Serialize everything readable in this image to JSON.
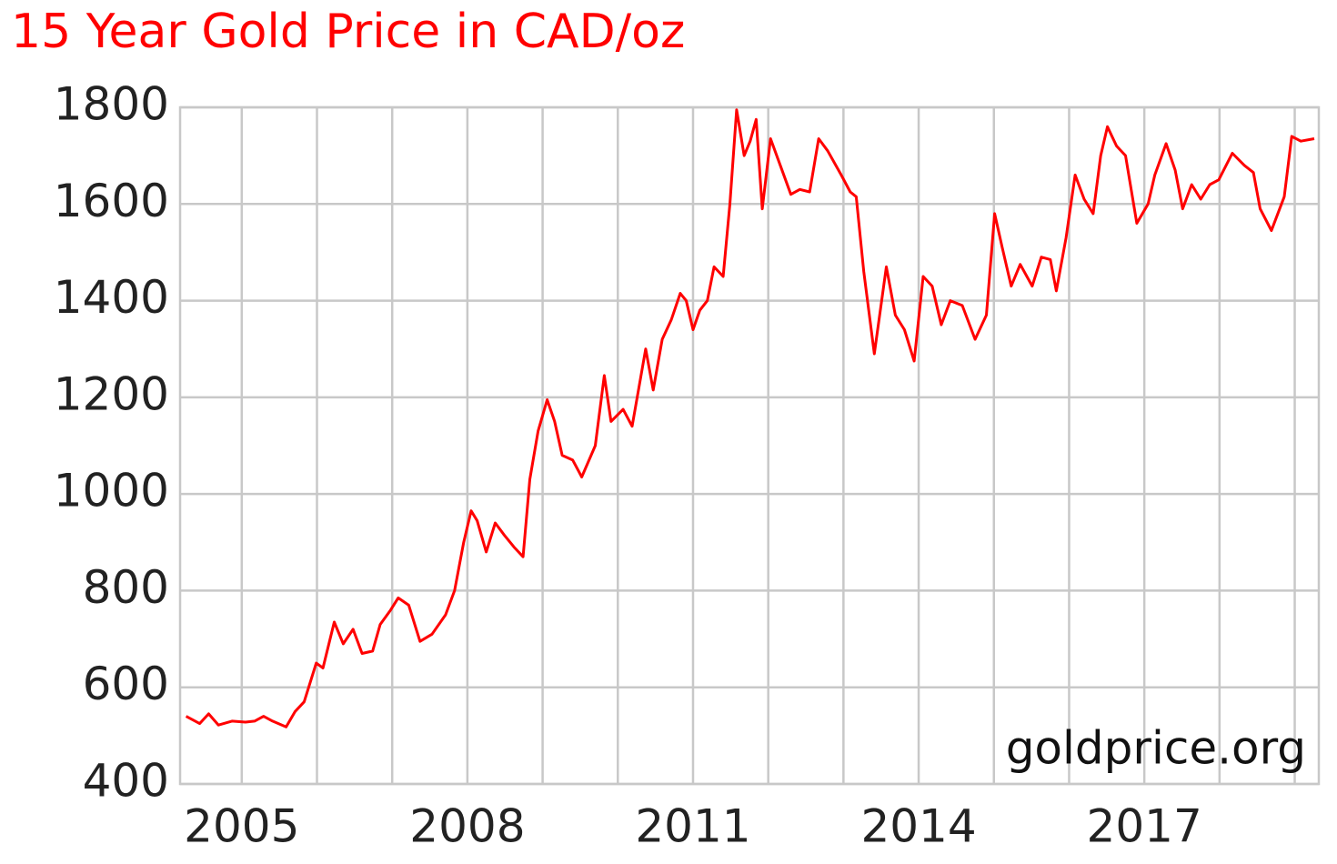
{
  "chart_data": {
    "type": "line",
    "title": "15 Year Gold Price in CAD/oz",
    "annotation": "goldprice.org",
    "x": [
      2004.26,
      2004.44,
      2004.56,
      2004.69,
      2004.87,
      2005.05,
      2005.17,
      2005.29,
      2005.41,
      2005.59,
      2005.71,
      2005.83,
      2005.99,
      2006.08,
      2006.23,
      2006.35,
      2006.48,
      2006.6,
      2006.74,
      2006.84,
      2006.98,
      2007.08,
      2007.22,
      2007.37,
      2007.53,
      2007.71,
      2007.83,
      2007.95,
      2008.05,
      2008.13,
      2008.25,
      2008.37,
      2008.49,
      2008.62,
      2008.74,
      2008.83,
      2008.94,
      2009.06,
      2009.16,
      2009.26,
      2009.4,
      2009.52,
      2009.7,
      2009.82,
      2009.91,
      2010.07,
      2010.19,
      2010.37,
      2010.47,
      2010.59,
      2010.71,
      2010.83,
      2010.91,
      2011.0,
      2011.09,
      2011.19,
      2011.28,
      2011.4,
      2011.49,
      2011.58,
      2011.68,
      2011.76,
      2011.84,
      2011.92,
      2012.03,
      2012.16,
      2012.3,
      2012.42,
      2012.55,
      2012.67,
      2012.79,
      2012.97,
      2013.09,
      2013.17,
      2013.27,
      2013.41,
      2013.57,
      2013.69,
      2013.81,
      2013.94,
      2014.06,
      2014.18,
      2014.3,
      2014.42,
      2014.58,
      2014.75,
      2014.9,
      2015.01,
      2015.11,
      2015.23,
      2015.35,
      2015.51,
      2015.63,
      2015.75,
      2015.83,
      2015.96,
      2016.08,
      2016.2,
      2016.32,
      2016.42,
      2016.51,
      2016.63,
      2016.75,
      2016.9,
      2017.05,
      2017.14,
      2017.29,
      2017.41,
      2017.51,
      2017.63,
      2017.75,
      2017.87,
      2017.99,
      2018.17,
      2018.33,
      2018.45,
      2018.54,
      2018.69,
      2018.86,
      2018.96,
      2019.08,
      2019.26
    ],
    "series": [
      {
        "name": "Gold Price",
        "color": "#ff0000",
        "values": [
          540,
          525,
          545,
          522,
          530,
          528,
          530,
          540,
          530,
          518,
          550,
          570,
          650,
          640,
          735,
          690,
          720,
          670,
          675,
          730,
          760,
          785,
          770,
          695,
          710,
          750,
          800,
          900,
          965,
          945,
          880,
          940,
          915,
          890,
          870,
          1030,
          1130,
          1195,
          1150,
          1080,
          1070,
          1035,
          1100,
          1245,
          1150,
          1175,
          1140,
          1300,
          1215,
          1320,
          1360,
          1415,
          1400,
          1340,
          1380,
          1400,
          1470,
          1450,
          1600,
          1795,
          1700,
          1730,
          1775,
          1590,
          1735,
          1680,
          1620,
          1630,
          1625,
          1735,
          1710,
          1660,
          1625,
          1615,
          1460,
          1290,
          1470,
          1370,
          1340,
          1275,
          1450,
          1430,
          1350,
          1400,
          1390,
          1320,
          1370,
          1580,
          1510,
          1430,
          1475,
          1430,
          1490,
          1485,
          1420,
          1530,
          1660,
          1610,
          1580,
          1700,
          1760,
          1720,
          1700,
          1560,
          1600,
          1660,
          1725,
          1670,
          1590,
          1640,
          1610,
          1640,
          1650,
          1705,
          1680,
          1665,
          1590,
          1545,
          1615,
          1740,
          1730,
          1735
        ]
      }
    ],
    "xlim": [
      2004.18,
      2019.32
    ],
    "xticks": [
      2005,
      2008,
      2011,
      2014,
      2017
    ],
    "xminor": [
      2006,
      2007,
      2009,
      2010,
      2012,
      2013,
      2015,
      2016,
      2018,
      2019
    ],
    "ylim": [
      400,
      1800
    ],
    "yticks": [
      400,
      600,
      800,
      1000,
      1200,
      1400,
      1600,
      1800
    ],
    "grid": true
  }
}
